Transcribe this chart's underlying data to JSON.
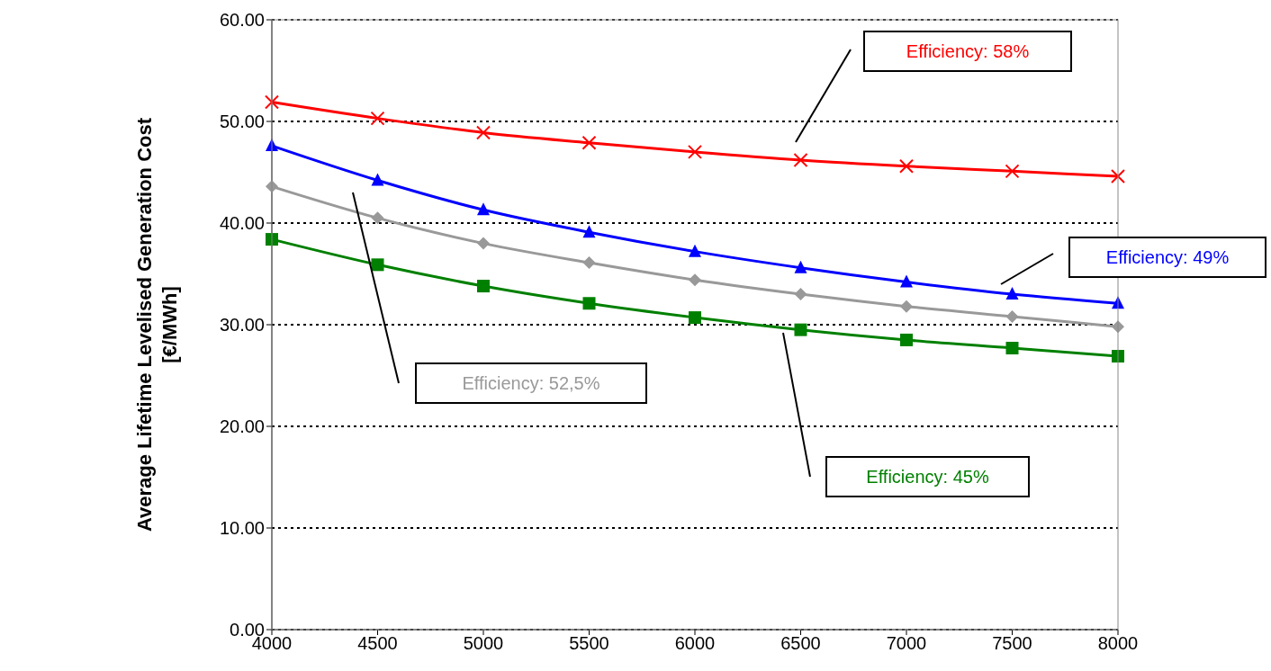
{
  "chart_data": {
    "type": "line",
    "ylabel": "Average Lifetime Levelised Generation Cost\n[€/MWh]",
    "categories": [
      "4000",
      "4500",
      "5000",
      "5500",
      "6000",
      "6500",
      "7000",
      "7500",
      "8000"
    ],
    "series": [
      {
        "name": "Efficiency: 58%",
        "color": "#ff0000",
        "marker": "cross",
        "values": [
          51.9,
          50.3,
          48.9,
          47.9,
          47.0,
          46.2,
          45.6,
          45.1,
          44.6
        ]
      },
      {
        "name": "Efficiency: 49%",
        "color": "#0000ff",
        "marker": "triangle",
        "values": [
          47.6,
          44.2,
          41.3,
          39.1,
          37.2,
          35.6,
          34.2,
          33.0,
          32.1
        ]
      },
      {
        "name": "Efficiency: 52,5%",
        "color": "#999999",
        "marker": "diamond",
        "values": [
          43.6,
          40.5,
          38.0,
          36.1,
          34.4,
          33.0,
          31.8,
          30.8,
          29.8
        ]
      },
      {
        "name": "Efficiency: 45%",
        "color": "#008000",
        "marker": "square",
        "values": [
          38.4,
          35.9,
          33.8,
          32.1,
          30.7,
          29.5,
          28.5,
          27.7,
          26.9
        ]
      }
    ],
    "ylim": [
      0,
      60
    ],
    "yticks": [
      {
        "value": 0,
        "label": "0.00"
      },
      {
        "value": 10,
        "label": "10.00"
      },
      {
        "value": 20,
        "label": "20.00"
      },
      {
        "value": 30,
        "label": "30.00"
      },
      {
        "value": 40,
        "label": "40.00"
      },
      {
        "value": 50,
        "label": "50.00"
      },
      {
        "value": 60,
        "label": "60.00"
      }
    ],
    "grid": "y",
    "legend": false,
    "line_style": "solid"
  }
}
